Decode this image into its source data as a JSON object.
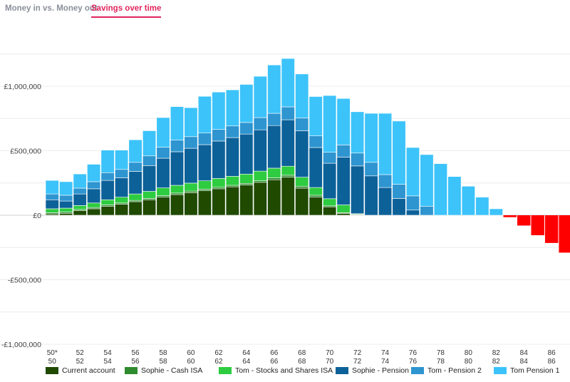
{
  "tabs": [
    {
      "label": "Money in vs. Money out",
      "active": false
    },
    {
      "label": "Savings over time",
      "active": true
    }
  ],
  "chart_data": {
    "type": "bar",
    "stacked": true,
    "title": "Savings over time",
    "xlabel": "",
    "ylabel": "",
    "ylim": [
      -1000000,
      1250000
    ],
    "yticks": [
      1000000,
      500000,
      0,
      -500000,
      -1000000
    ],
    "ytick_labels": [
      "£1,000,000",
      "£500,000",
      "£0",
      "-£500,000",
      "-£1,000,000"
    ],
    "categories": [
      "50",
      "51",
      "52",
      "53",
      "54",
      "55",
      "56",
      "57",
      "58",
      "59",
      "60",
      "61",
      "62",
      "63",
      "64",
      "65",
      "66",
      "67",
      "68",
      "69",
      "70",
      "71",
      "72",
      "73",
      "74",
      "75",
      "76",
      "77",
      "78",
      "79",
      "80",
      "81",
      "82",
      "83",
      "84",
      "85",
      "86",
      "87"
    ],
    "xtick_row1": [
      "50*",
      "",
      "52",
      "",
      "54",
      "",
      "56",
      "",
      "58",
      "",
      "60",
      "",
      "62",
      "",
      "64",
      "",
      "66",
      "",
      "68",
      "",
      "70",
      "",
      "72",
      "",
      "74",
      "",
      "76",
      "",
      "78",
      "",
      "80",
      "",
      "82",
      "",
      "84",
      "",
      "86",
      ""
    ],
    "xtick_row2": [
      "50",
      "",
      "52",
      "",
      "54",
      "",
      "56",
      "",
      "58",
      "",
      "60",
      "",
      "62",
      "",
      "64",
      "",
      "66",
      "",
      "68",
      "",
      "70",
      "",
      "72",
      "",
      "74",
      "",
      "76",
      "",
      "78",
      "",
      "80",
      "",
      "82",
      "",
      "84",
      "",
      "86",
      ""
    ],
    "series": [
      {
        "name": "Current account",
        "color": "#1f4a00",
        "values": [
          10000,
          15000,
          35000,
          50000,
          70000,
          85000,
          105000,
          120000,
          140000,
          160000,
          175000,
          190000,
          205000,
          220000,
          235000,
          255000,
          275000,
          295000,
          210000,
          140000,
          65000,
          15000,
          5000,
          0,
          0,
          0,
          0,
          0,
          0,
          0,
          0,
          0,
          0,
          -15000,
          -80000,
          -155000,
          -215000,
          -290000
        ]
      },
      {
        "name": "Sophie - Cash ISA",
        "color": "#2e8b2e",
        "values": [
          10000,
          10000,
          10000,
          10000,
          10000,
          10000,
          10000,
          10000,
          12000,
          12000,
          12000,
          12000,
          12000,
          12000,
          12000,
          12000,
          15000,
          15000,
          15000,
          15000,
          8000,
          5000,
          2000,
          0,
          0,
          0,
          0,
          0,
          0,
          0,
          0,
          0,
          0,
          0,
          0,
          0,
          0,
          0
        ]
      },
      {
        "name": "Tom - Stocks and Shares ISA",
        "color": "#2ecc40",
        "values": [
          30000,
          30000,
          30000,
          35000,
          40000,
          45000,
          50000,
          55000,
          60000,
          60000,
          62000,
          65000,
          68000,
          70000,
          72000,
          75000,
          75000,
          70000,
          70000,
          60000,
          55000,
          60000,
          5000,
          0,
          0,
          0,
          0,
          0,
          0,
          0,
          0,
          0,
          0,
          0,
          0,
          0,
          0,
          0
        ]
      },
      {
        "name": "Sophie - Pension",
        "color": "#0d6199",
        "values": [
          70000,
          55000,
          90000,
          110000,
          150000,
          150000,
          175000,
          200000,
          230000,
          260000,
          270000,
          280000,
          290000,
          300000,
          310000,
          320000,
          330000,
          360000,
          360000,
          310000,
          275000,
          370000,
          370000,
          305000,
          215000,
          130000,
          40000,
          0,
          0,
          0,
          0,
          0,
          0,
          0,
          0,
          0,
          0,
          0
        ]
      },
      {
        "name": "Tom - Pension 2",
        "color": "#2e95d0",
        "values": [
          45000,
          45000,
          45000,
          55000,
          60000,
          65000,
          70000,
          75000,
          85000,
          90000,
          90000,
          90000,
          90000,
          90000,
          90000,
          95000,
          95000,
          100000,
          100000,
          90000,
          85000,
          95000,
          100000,
          105000,
          100000,
          110000,
          110000,
          70000,
          0,
          0,
          0,
          0,
          0,
          0,
          0,
          0,
          0,
          0
        ]
      },
      {
        "name": "Tom Pension 1",
        "color": "#3cc3fa",
        "values": [
          105000,
          105000,
          110000,
          135000,
          175000,
          150000,
          175000,
          195000,
          230000,
          260000,
          225000,
          285000,
          290000,
          280000,
          295000,
          320000,
          375000,
          375000,
          340000,
          305000,
          440000,
          360000,
          320000,
          380000,
          475000,
          490000,
          375000,
          400000,
          400000,
          300000,
          225000,
          140000,
          50000,
          0,
          0,
          0,
          0,
          0
        ]
      }
    ]
  }
}
